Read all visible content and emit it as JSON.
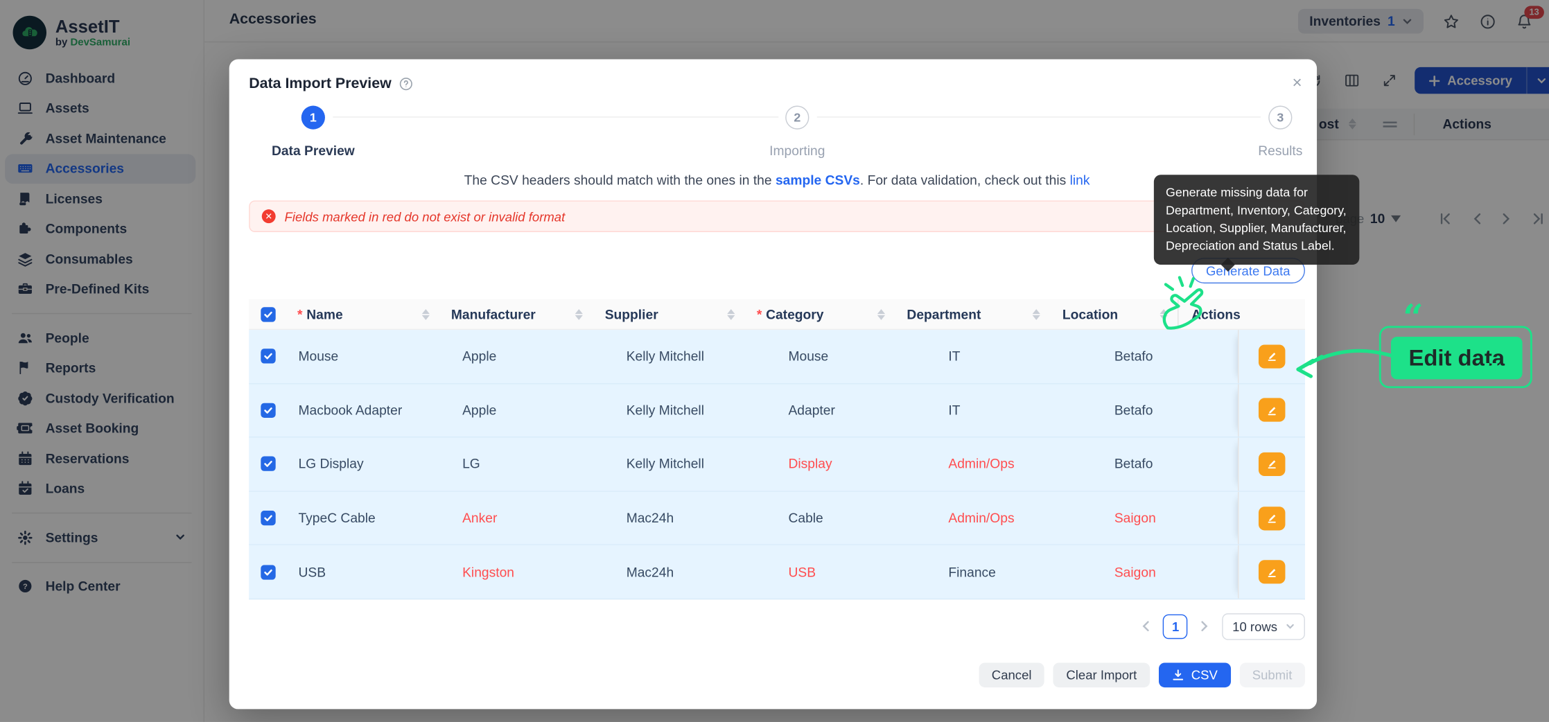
{
  "app": {
    "title": "AssetIT",
    "byline_prefix": "by",
    "byline_brand": "DevSamurai"
  },
  "sidebar": {
    "groups": [
      {
        "items": [
          {
            "label": "Dashboard",
            "icon": "dashboard-icon"
          },
          {
            "label": "Assets",
            "icon": "laptop-icon"
          },
          {
            "label": "Asset Maintenance",
            "icon": "wrench-icon"
          },
          {
            "label": "Accessories",
            "icon": "keyboard-icon",
            "active": true
          },
          {
            "label": "Licenses",
            "icon": "license-icon"
          },
          {
            "label": "Components",
            "icon": "puzzle-icon"
          },
          {
            "label": "Consumables",
            "icon": "layers-icon"
          },
          {
            "label": "Pre-Defined Kits",
            "icon": "toolbox-icon"
          }
        ]
      },
      {
        "items": [
          {
            "label": "People",
            "icon": "users-icon"
          },
          {
            "label": "Reports",
            "icon": "flag-icon"
          },
          {
            "label": "Custody Verification",
            "icon": "badge-check-icon"
          },
          {
            "label": "Asset Booking",
            "icon": "ticket-icon"
          },
          {
            "label": "Reservations",
            "icon": "calendar-icon"
          },
          {
            "label": "Loans",
            "icon": "calendar-check-icon"
          }
        ]
      },
      {
        "items": [
          {
            "label": "Settings",
            "icon": "gear-icon",
            "chevron": true
          }
        ]
      },
      {
        "items": [
          {
            "label": "Help Center",
            "icon": "help-circle-icon"
          }
        ]
      }
    ]
  },
  "header": {
    "page_title": "Accessories",
    "inventories_label": "Inventories",
    "inventories_count": "1",
    "notification_count": "13"
  },
  "background": {
    "accessory_button": "Accessory",
    "cost_column_fragment": "ost",
    "actions_column": "Actions",
    "page_fragment": "page",
    "page_size": "10"
  },
  "modal": {
    "title": "Data Import Preview",
    "steps": [
      {
        "num": "1",
        "label": "Data Preview",
        "state": "active"
      },
      {
        "num": "2",
        "label": "Importing",
        "state": "wait"
      },
      {
        "num": "3",
        "label": "Results",
        "state": "wait"
      }
    ],
    "note_part1": "The CSV headers should match with the ones in the ",
    "note_link1": "sample CSVs",
    "note_part2": ". For data validation, check out this ",
    "note_link2": "link",
    "error_text": "Fields marked in red do not exist or invalid format",
    "generate_button": "Generate Data",
    "tooltip_text": "Generate missing data for Department, Inventory, Category, Location, Supplier, Manufacturer, Depreciation and Status Label.",
    "table": {
      "columns": [
        {
          "label": "Name",
          "required": true,
          "sortable": true
        },
        {
          "label": "Manufacturer",
          "required": false,
          "sortable": true
        },
        {
          "label": "Supplier",
          "required": false,
          "sortable": true
        },
        {
          "label": "Category",
          "required": true,
          "sortable": true
        },
        {
          "label": "Department",
          "required": false,
          "sortable": true
        },
        {
          "label": "Location",
          "required": false,
          "sortable": true
        },
        {
          "label": "Actions",
          "required": false,
          "sortable": false
        }
      ],
      "rows": [
        {
          "name": "Mouse",
          "manufacturer": "Apple",
          "supplier": "Kelly Mitchell",
          "category": "Mouse",
          "department": "IT",
          "location": "Betafo",
          "checked": true,
          "invalid": []
        },
        {
          "name": "Macbook Adapter",
          "manufacturer": "Apple",
          "supplier": "Kelly Mitchell",
          "category": "Adapter",
          "department": "IT",
          "location": "Betafo",
          "checked": true,
          "invalid": []
        },
        {
          "name": "LG Display",
          "manufacturer": "LG",
          "supplier": "Kelly Mitchell",
          "category": "Display",
          "department": "Admin/Ops",
          "location": "Betafo",
          "checked": true,
          "invalid": [
            "category",
            "department"
          ]
        },
        {
          "name": "TypeC Cable",
          "manufacturer": "Anker",
          "supplier": "Mac24h",
          "category": "Cable",
          "department": "Admin/Ops",
          "location": "Saigon",
          "checked": true,
          "invalid": [
            "manufacturer",
            "department",
            "location"
          ]
        },
        {
          "name": "USB",
          "manufacturer": "Kingston",
          "supplier": "Mac24h",
          "category": "USB",
          "department": "Finance",
          "location": "Saigon",
          "checked": true,
          "invalid": [
            "manufacturer",
            "category",
            "location"
          ]
        }
      ]
    },
    "pagination": {
      "current_page": "1",
      "page_size_label": "10 rows"
    },
    "footer": {
      "cancel": "Cancel",
      "clear": "Clear Import",
      "csv": "CSV",
      "submit": "Submit"
    }
  },
  "annotations": {
    "edit_data_label": "Edit data"
  },
  "colors": {
    "accent_blue": "#2466f0",
    "accessory_button_blue": "#2353cd",
    "brand_green": "#2fae66",
    "annotation_green": "#1de189",
    "edit_orange": "#f9a01b",
    "error_red": "#f23c30",
    "invalid_cell_red": "#ff4d4f",
    "selected_row_blue": "#e6f4ff",
    "badge_red": "#e5484d"
  }
}
